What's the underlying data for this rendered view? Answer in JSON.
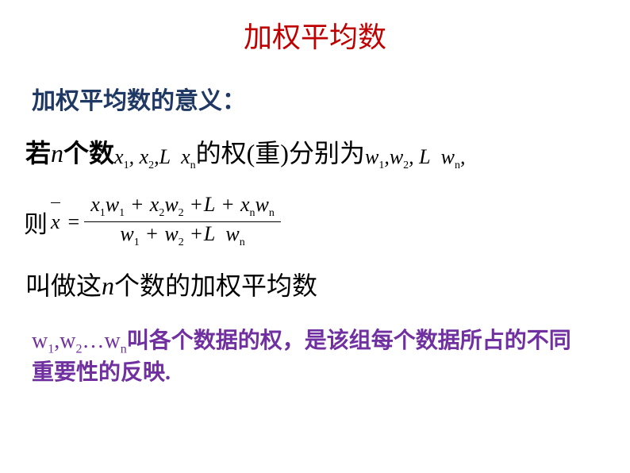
{
  "colors": {
    "title": "#c00000",
    "heading": "#1f3864",
    "body": "#000000",
    "footer": "#7030a0",
    "background": "#ffffff"
  },
  "title": "加权平均数",
  "heading": "加权平均数的意义：",
  "line1": {
    "prefix_bold": "若",
    "n": "n",
    "mid1_bold": "个数",
    "xseq": "x₁, x₂,L  xₙ",
    "mid2": "的权(重)分别为",
    "wseq": "w₁,w₂, L  wₙ,"
  },
  "formula": {
    "lead": "则",
    "xbar": "x",
    "numerator": "x₁w₁ + x₂w₂ +L  + xₙwₙ",
    "denominator": "w₁ + w₂ +L  wₙ"
  },
  "line3": {
    "prefix": "叫做这",
    "n": "n",
    "suffix": "个数的加权平均数"
  },
  "footer": {
    "w_part": "w₁,w₂…wₙ",
    "text": "叫各个数据的权，是该组每个数据所占的不同重要性的反映."
  },
  "fonts": {
    "title_size": 36,
    "heading_size": 30,
    "body_size": 32,
    "formula_size": 26,
    "footer_size": 28
  }
}
